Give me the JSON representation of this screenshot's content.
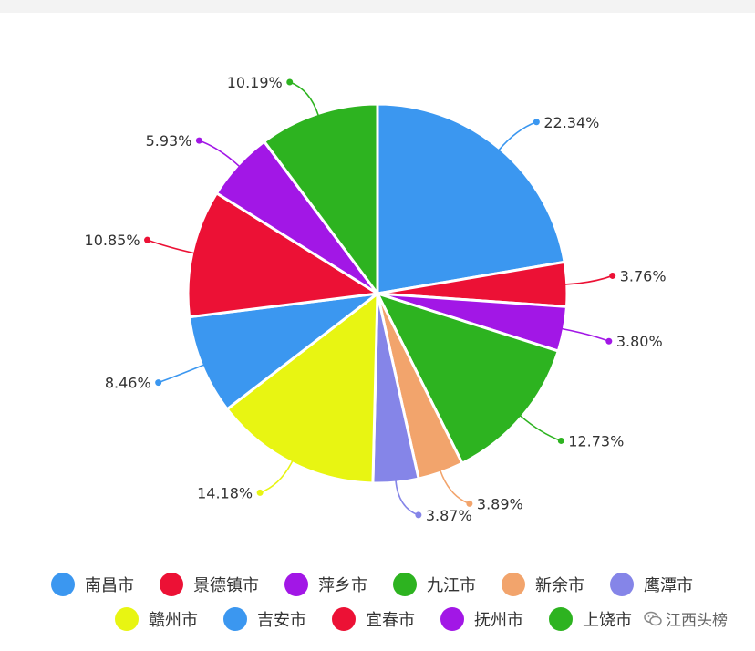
{
  "chart_data": {
    "type": "pie",
    "title": "",
    "slices": [
      {
        "label": "南昌市",
        "value": 22.34,
        "display": "22.34%",
        "color": "#3b97f0"
      },
      {
        "label": "景德镇市",
        "value": 3.76,
        "display": "3.76%",
        "color": "#ec1135"
      },
      {
        "label": "萍乡市",
        "value": 3.8,
        "display": "3.80%",
        "color": "#a217e6"
      },
      {
        "label": "九江市",
        "value": 12.73,
        "display": "12.73%",
        "color": "#2db320"
      },
      {
        "label": "新余市",
        "value": 3.89,
        "display": "3.89%",
        "color": "#f2a46c"
      },
      {
        "label": "鹰潭市",
        "value": 3.87,
        "display": "3.87%",
        "color": "#8585e8"
      },
      {
        "label": "赣州市",
        "value": 14.18,
        "display": "14.18%",
        "color": "#e8f512"
      },
      {
        "label": "吉安市",
        "value": 8.46,
        "display": "8.46%",
        "color": "#3b97f0"
      },
      {
        "label": "宜春市",
        "value": 10.85,
        "display": "10.85%",
        "color": "#ec1135"
      },
      {
        "label": "抚州市",
        "value": 5.93,
        "display": "5.93%",
        "color": "#a217e6"
      },
      {
        "label": "上饶市",
        "value": 10.19,
        "display": "10.19%",
        "color": "#2db320"
      }
    ],
    "legend_position": "bottom",
    "legend_rows": [
      [
        "南昌市",
        "景德镇市",
        "萍乡市",
        "九江市",
        "新余市",
        "鹰潭市"
      ],
      [
        "赣州市",
        "吉安市",
        "宜春市",
        "抚州市",
        "上饶市"
      ]
    ]
  },
  "watermark": {
    "text": "江西头榜",
    "icon": "wechat-icon"
  }
}
